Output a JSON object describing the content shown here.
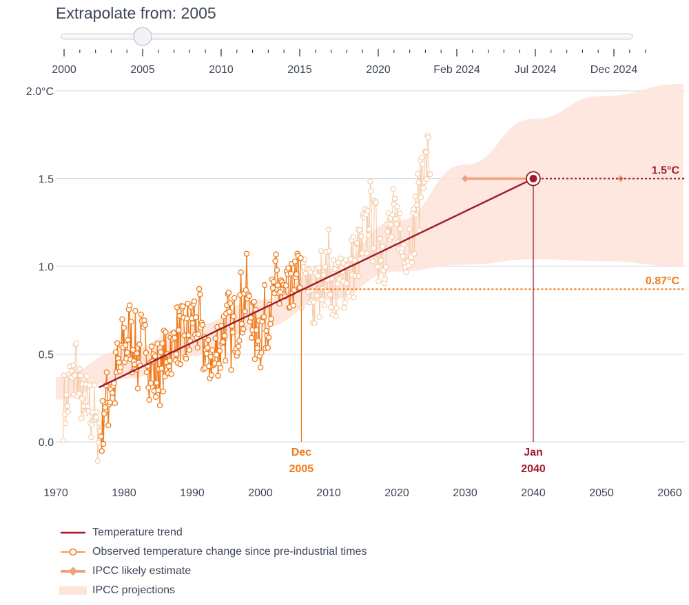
{
  "slider": {
    "title_prefix": "Extrapolate from: ",
    "value": "2005",
    "ticks": [
      "2000",
      "2005",
      "2010",
      "2015",
      "2020",
      "Feb 2024",
      "Jul 2024",
      "Dec 2024"
    ]
  },
  "colors": {
    "trend": "#a01c2c",
    "observed": "#f07a1a",
    "observed_faded": "#f5c9a3",
    "ipcc_estimate": "#f0a07a",
    "projection": "#fde3d8",
    "grid": "#d3d6dc",
    "text": "#3c4655"
  },
  "chart_data": {
    "type": "line",
    "title": "",
    "xlabel": "",
    "ylabel": "",
    "xlim": [
      1970,
      2062
    ],
    "ylim": [
      -0.25,
      2.05
    ],
    "x_ticks": [
      "1970",
      "1980",
      "1990",
      "2000",
      "2010",
      "2020",
      "2030",
      "2040",
      "2050",
      "2060"
    ],
    "y_ticks": [
      "2.0°C",
      "1.5",
      "1.0",
      "0.5",
      "0.0"
    ],
    "trend": {
      "name": "Temperature trend",
      "x": [
        1976.3,
        2040.0
      ],
      "y": [
        0.31,
        1.5
      ]
    },
    "extrapolate_from": {
      "label_month": "Dec",
      "label_year": "2005",
      "x": 2006.0,
      "value": 0.87,
      "value_label": "0.87°C"
    },
    "crossing": {
      "label_month": "Jan",
      "label_year": "2040",
      "x": 2040.0,
      "value": 1.5,
      "value_label": "1.5°C"
    },
    "ipcc_likely": {
      "name": "IPCC likely estimate",
      "x": [
        2030.0,
        2052.8
      ],
      "y": 1.5
    },
    "ipcc_projection": {
      "name": "IPCC projections",
      "x": [
        1970,
        1980,
        1990,
        2000,
        2010,
        2020,
        2030,
        2040,
        2050,
        2062
      ],
      "lower": [
        0.24,
        0.36,
        0.49,
        0.65,
        0.81,
        0.97,
        1.01,
        1.04,
        1.03,
        1.0
      ],
      "upper": [
        0.37,
        0.52,
        0.66,
        0.81,
        0.99,
        1.26,
        1.58,
        1.84,
        1.97,
        2.04
      ]
    },
    "observed": {
      "name": "Observed temperature change since pre-industrial times",
      "anchors_x": [
        1971,
        1972,
        1973,
        1974,
        1975,
        1976.5,
        1977,
        1978,
        1979,
        1980,
        1981,
        1982,
        1983,
        1984,
        1985,
        1986,
        1987,
        1988,
        1989,
        1990,
        1991,
        1992,
        1993,
        1994,
        1995,
        1996,
        1997,
        1998,
        1999,
        2000,
        2001,
        2002,
        2003,
        2004,
        2005,
        2006,
        2007,
        2008,
        2009,
        2010,
        2011,
        2012,
        2013,
        2014,
        2015,
        2016,
        2017,
        2018,
        2019,
        2020,
        2021,
        2022,
        2023,
        2024,
        2024.9
      ],
      "anchors_y": [
        0.15,
        0.28,
        0.45,
        0.15,
        0.22,
        0.02,
        0.18,
        0.3,
        0.38,
        0.55,
        0.62,
        0.48,
        0.58,
        0.42,
        0.38,
        0.45,
        0.55,
        0.62,
        0.55,
        0.7,
        0.65,
        0.48,
        0.45,
        0.55,
        0.68,
        0.6,
        0.75,
        0.85,
        0.65,
        0.62,
        0.72,
        0.85,
        0.88,
        0.78,
        0.9,
        0.95,
        0.88,
        0.8,
        0.95,
        1.0,
        0.85,
        0.92,
        0.98,
        1.02,
        1.12,
        1.3,
        1.15,
        1.1,
        1.2,
        1.25,
        1.1,
        1.15,
        1.35,
        1.62,
        1.55
      ],
      "highlight_range": [
        1976.5,
        2006.0
      ]
    }
  },
  "legend": [
    {
      "key": "trend",
      "label": "Temperature trend"
    },
    {
      "key": "observed",
      "label": "Observed temperature change since pre-industrial times"
    },
    {
      "key": "ipcc_likely",
      "label": "IPCC likely estimate"
    },
    {
      "key": "ipcc_projection",
      "label": "IPCC projections"
    }
  ]
}
